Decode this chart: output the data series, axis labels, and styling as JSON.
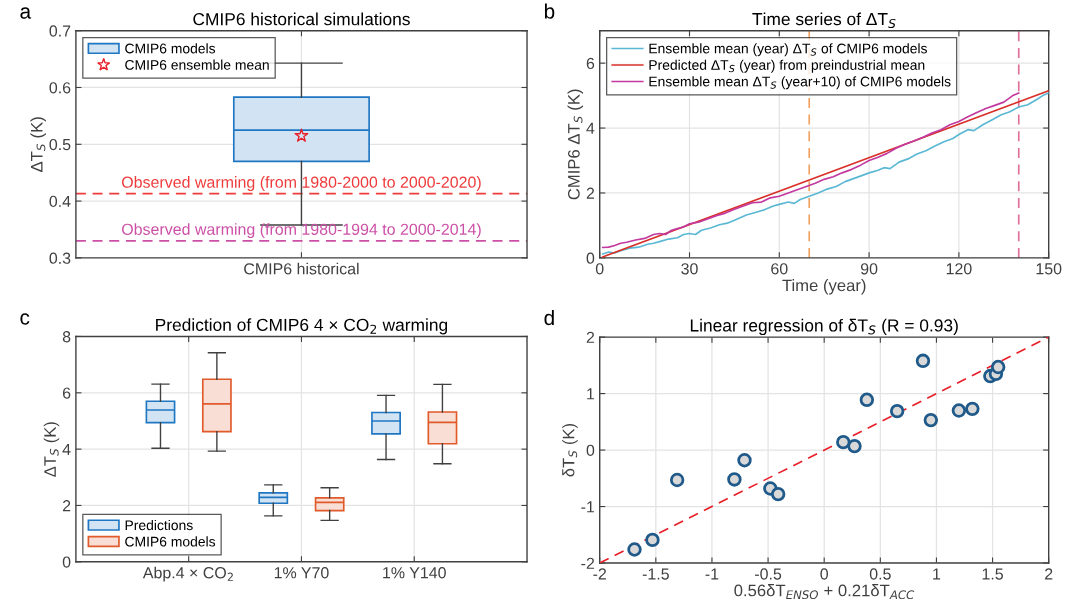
{
  "chart_data": [
    {
      "type": "box",
      "title": "CMIP6 historical simulations",
      "ylabel": "ΔT$_{S}$ (K)",
      "categories": [
        "CMIP6 historical"
      ],
      "ylim": [
        0.3,
        0.7
      ],
      "yticks": [
        0.3,
        0.4,
        0.5,
        0.6,
        0.7
      ],
      "grid": true,
      "legend": "top left",
      "annotations": [
        "a"
      ],
      "series": [
        {
          "name": "CMIP6 models",
          "color": "#1f77c4",
          "boxes": [
            {
              "low": 0.358,
              "q1": 0.47,
              "median": 0.525,
              "q3": 0.583,
              "high": 0.643
            }
          ]
        },
        {
          "type": "scatter",
          "name": "CMIP6 ensemble mean",
          "color": "#e8202a",
          "marker": "star",
          "x": [
            "CMIP6 historical"
          ],
          "values": [
            0.515
          ]
        }
      ],
      "ref_lines": [
        {
          "axis": "y",
          "value": 0.413,
          "label": "Observed warming (from 1980-2000 to 2000-2020)",
          "color": "#ee3b3b",
          "line_style": "dashed"
        },
        {
          "axis": "y",
          "value": 0.33,
          "label": "Observed warming (from 1980-1994 to 2000-2014)",
          "color": "#cc4fa6",
          "line_style": "dashed"
        }
      ]
    },
    {
      "type": "line",
      "title": "Time series of ΔT$_{S}$",
      "xlabel": "Time (year)",
      "ylabel": "CMIP6 ΔT$_{S}$ (K)",
      "xlim": [
        0,
        150
      ],
      "xticks": [
        0,
        30,
        60,
        90,
        120,
        150
      ],
      "ylim": [
        0,
        7
      ],
      "yticks": [
        0,
        2,
        4,
        6
      ],
      "grid": true,
      "legend": "top left",
      "annotations": [
        "b"
      ],
      "series": [
        {
          "name": "Ensemble mean (year) ΔT$_{S}$ of CMIP6 models",
          "color": "#5bb8d4",
          "x": [
            1,
            3,
            5,
            7,
            10,
            13,
            16,
            18,
            20,
            23,
            26,
            28,
            30,
            32,
            34,
            37,
            40,
            43,
            46,
            49,
            52,
            55,
            58,
            60,
            63,
            65,
            67,
            70,
            73,
            76,
            79,
            82,
            85,
            88,
            90,
            93,
            95,
            97,
            100,
            103,
            106,
            109,
            112,
            115,
            118,
            120,
            123,
            125,
            128,
            131,
            134,
            137,
            140,
            143,
            146,
            148,
            150
          ],
          "values": [
            0.12,
            0.18,
            0.15,
            0.22,
            0.3,
            0.33,
            0.42,
            0.45,
            0.5,
            0.58,
            0.62,
            0.72,
            0.75,
            0.72,
            0.85,
            0.92,
            1.02,
            1.08,
            1.2,
            1.32,
            1.4,
            1.48,
            1.6,
            1.65,
            1.72,
            1.68,
            1.8,
            1.9,
            2.0,
            2.12,
            2.2,
            2.35,
            2.45,
            2.55,
            2.62,
            2.7,
            2.78,
            2.75,
            2.95,
            3.05,
            3.2,
            3.3,
            3.45,
            3.58,
            3.68,
            3.8,
            3.95,
            3.92,
            4.1,
            4.25,
            4.4,
            4.5,
            4.65,
            4.72,
            4.88,
            5.0,
            5.08
          ]
        },
        {
          "name": "Predicted ΔT$_{S}$ (year) from preindustrial mean",
          "color": "#d9302a",
          "x": [
            1,
            150
          ],
          "values": [
            0.03,
            5.15
          ]
        },
        {
          "name": "Ensemble mean ΔT$_{S}$ (year+10) of CMIP6 models",
          "color": "#c2399f",
          "x": [
            1,
            3,
            5,
            7,
            9,
            12,
            15,
            18,
            20,
            22,
            24,
            26,
            28,
            30,
            33,
            36,
            39,
            42,
            45,
            48,
            51,
            54,
            57,
            60,
            63,
            66,
            69,
            72,
            75,
            78,
            81,
            84,
            87,
            90,
            93,
            96,
            99,
            102,
            105,
            108,
            111,
            114,
            117,
            120,
            123,
            126,
            129,
            132,
            135,
            138,
            140
          ],
          "values": [
            0.32,
            0.33,
            0.38,
            0.45,
            0.48,
            0.55,
            0.6,
            0.72,
            0.75,
            0.72,
            0.85,
            0.9,
            0.95,
            1.05,
            1.1,
            1.2,
            1.3,
            1.38,
            1.5,
            1.6,
            1.7,
            1.72,
            1.85,
            1.9,
            2.0,
            2.1,
            2.2,
            2.3,
            2.42,
            2.5,
            2.62,
            2.72,
            2.85,
            3.0,
            3.1,
            3.22,
            3.38,
            3.5,
            3.6,
            3.72,
            3.85,
            3.95,
            4.1,
            4.2,
            4.35,
            4.48,
            4.6,
            4.7,
            4.8,
            5.0,
            5.08
          ]
        }
      ],
      "ref_lines": [
        {
          "axis": "x",
          "value": 70,
          "color": "#f0a060",
          "line_style": "dashed"
        },
        {
          "axis": "x",
          "value": 140,
          "color": "#e0709a",
          "line_style": "dashed"
        }
      ]
    },
    {
      "type": "box",
      "title": "Prediction of CMIP6 4 × CO$_{2}$ warming",
      "ylabel": "ΔT$_{S}$ (K)",
      "categories": [
        "Abp.4 × CO$_{2}$",
        "1% Y70",
        "1% Y140"
      ],
      "ylim": [
        0,
        8
      ],
      "yticks": [
        0,
        2,
        4,
        6,
        8
      ],
      "grid": true,
      "legend": "bottom left",
      "annotations": [
        "c"
      ],
      "series": [
        {
          "name": "Predictions",
          "color": "#1f77c4",
          "boxes": [
            {
              "low": 4.03,
              "q1": 4.94,
              "median": 5.39,
              "q3": 5.7,
              "high": 6.31
            },
            {
              "low": 1.63,
              "q1": 2.08,
              "median": 2.29,
              "q3": 2.45,
              "high": 2.73
            },
            {
              "low": 3.63,
              "q1": 4.54,
              "median": 5.0,
              "q3": 5.3,
              "high": 5.91
            }
          ]
        },
        {
          "name": "CMIP6 models",
          "color": "#e05a2b",
          "boxes": [
            {
              "low": 3.93,
              "q1": 4.62,
              "median": 5.61,
              "q3": 6.48,
              "high": 7.42
            },
            {
              "low": 1.47,
              "q1": 1.82,
              "median": 2.11,
              "q3": 2.27,
              "high": 2.63
            },
            {
              "low": 3.48,
              "q1": 4.19,
              "median": 4.95,
              "q3": 5.32,
              "high": 6.3
            }
          ]
        }
      ]
    },
    {
      "type": "scatter",
      "title": "Linear regression of δT$_{S}$ (R = 0.93)",
      "xlabel": "0.56δT$_{ENSO}$ + 0.21δT$_{ACC}$",
      "ylabel": "δT$_{S}$ (K)",
      "xlim": [
        -2,
        2
      ],
      "xticks": [
        -2,
        -1.5,
        -1,
        -0.5,
        0,
        0.5,
        1,
        1.5,
        2
      ],
      "ylim": [
        -2,
        2
      ],
      "yticks": [
        -2,
        -1,
        0,
        1,
        2
      ],
      "grid": true,
      "annotations": [
        "d"
      ],
      "series": [
        {
          "type": "line",
          "color": "#e8202a",
          "line_style": "dashed",
          "x": [
            -2,
            2
          ],
          "values": [
            -2,
            2
          ]
        },
        {
          "color": "#1f5a8a",
          "marker": "circle",
          "x": [
            -1.69,
            -1.53,
            -1.31,
            -0.8,
            -0.71,
            -0.48,
            -0.41,
            0.17,
            0.27,
            0.38,
            0.65,
            0.88,
            0.95,
            1.2,
            1.32,
            1.48,
            1.53,
            1.55
          ],
          "values": [
            -1.76,
            -1.59,
            -0.53,
            -0.52,
            -0.18,
            -0.68,
            -0.78,
            0.14,
            0.07,
            0.89,
            0.69,
            1.58,
            0.53,
            0.7,
            0.73,
            1.31,
            1.35,
            1.47
          ]
        }
      ]
    }
  ]
}
